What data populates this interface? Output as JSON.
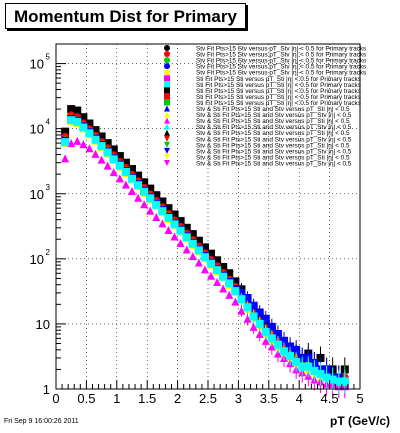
{
  "title": "Momentum Dist for Primary",
  "footer_text": "Fri Sep  9 16:00:26 2011",
  "chart_data": {
    "type": "scatter",
    "xlabel": "pT (GeV/c)",
    "ylabel": "",
    "xlim": [
      0,
      5
    ],
    "ylim": [
      1,
      200000
    ],
    "yscale": "log",
    "grid": true,
    "legend_placement": "top-right",
    "x_ticks": [
      "0",
      "0.5",
      "1",
      "1.5",
      "2",
      "2.5",
      "3",
      "3.5",
      "4",
      "4.5",
      "5"
    ],
    "y_ticks": [
      {
        "base": "1",
        "exp": ""
      },
      {
        "base": "10",
        "exp": ""
      },
      {
        "base": "10",
        "exp": "2"
      },
      {
        "base": "10",
        "exp": "3"
      },
      {
        "base": "10",
        "exp": "4"
      },
      {
        "base": "10",
        "exp": "5"
      }
    ],
    "x": [
      0.15,
      0.25,
      0.35,
      0.45,
      0.55,
      0.65,
      0.75,
      0.85,
      0.95,
      1.05,
      1.15,
      1.25,
      1.35,
      1.45,
      1.55,
      1.65,
      1.75,
      1.85,
      1.95,
      2.05,
      2.15,
      2.25,
      2.35,
      2.45,
      2.55,
      2.65,
      2.75,
      2.85,
      2.95,
      3.05,
      3.15,
      3.25,
      3.35,
      3.45,
      3.55,
      3.65,
      3.75,
      3.85,
      3.95,
      4.05,
      4.15,
      4.25,
      4.35,
      4.45,
      4.55,
      4.65,
      4.75
    ],
    "series": [
      {
        "color": "#000000",
        "marker": "square",
        "values": [
          9000,
          20000,
          19000,
          15000,
          12000,
          9500,
          7600,
          6000,
          4800,
          3800,
          3000,
          2400,
          1900,
          1500,
          1200,
          950,
          760,
          600,
          480,
          380,
          300,
          240,
          190,
          150,
          120,
          95,
          75,
          60,
          45,
          34,
          25,
          18,
          13,
          10,
          8,
          6,
          5,
          4,
          3.5,
          3,
          3.5,
          2.5,
          3,
          2,
          2,
          1.5,
          2
        ]
      },
      {
        "color": "#ff0000",
        "marker": "circle",
        "values": [
          7500,
          16000,
          15000,
          12000,
          9800,
          7800,
          6200,
          5000,
          3900,
          3100,
          2500,
          1950,
          1550,
          1230,
          980,
          780,
          620,
          490,
          390,
          310,
          245,
          195,
          155,
          122,
          97,
          77,
          61,
          48,
          37,
          28,
          21,
          15,
          11,
          8.5,
          7,
          5.5,
          4.5,
          4,
          3,
          2.5,
          3,
          2.5,
          2,
          2,
          1.5,
          1.5,
          1.5
        ]
      },
      {
        "color": "#00cc00",
        "marker": "triangle",
        "values": [
          7000,
          15000,
          14000,
          11500,
          9300,
          7400,
          5900,
          4700,
          3700,
          2950,
          2350,
          1850,
          1480,
          1170,
          930,
          740,
          590,
          465,
          370,
          295,
          233,
          185,
          147,
          116,
          92,
          73,
          58,
          46,
          35,
          26,
          19,
          14,
          10.5,
          8,
          6.5,
          5,
          4,
          3.5,
          3,
          2.5,
          2.5,
          2,
          2,
          1.5,
          1.5,
          1.2,
          1.5
        ]
      },
      {
        "color": "#0000ff",
        "marker": "square",
        "values": [
          6500,
          14000,
          13200,
          10800,
          8800,
          7000,
          5600,
          4450,
          3500,
          2800,
          2230,
          1760,
          1400,
          1110,
          880,
          700,
          560,
          440,
          350,
          280,
          221,
          175,
          139,
          110,
          87,
          69,
          55,
          44,
          34,
          30,
          25,
          19,
          15,
          12,
          9,
          7,
          5.5,
          4.5,
          4,
          3,
          3,
          2.5,
          2,
          2,
          1.5,
          1.5,
          1.2
        ]
      },
      {
        "color": "#ffff00",
        "marker": "triangle",
        "values": [
          6000,
          13000,
          12200,
          10000,
          8200,
          6500,
          5200,
          4150,
          3260,
          2600,
          2080,
          1640,
          1300,
          1030,
          820,
          650,
          520,
          410,
          326,
          260,
          206,
          163,
          130,
          102,
          81,
          64,
          51,
          40,
          31,
          23,
          17,
          12.5,
          9.5,
          7,
          5.5,
          4.5,
          3.5,
          3,
          2.5,
          2,
          2,
          1.8,
          1.5,
          1.5,
          1.2,
          1.2,
          1.2
        ]
      },
      {
        "color": "#ff00ff",
        "marker": "triangle",
        "values": [
          3500,
          6000,
          6500,
          5800,
          5000,
          4100,
          3350,
          2700,
          2150,
          1720,
          1380,
          1100,
          870,
          690,
          550,
          440,
          350,
          277,
          220,
          175,
          139,
          110,
          88,
          69,
          55,
          44,
          35,
          28,
          22,
          16,
          12,
          9,
          7,
          5.5,
          4.5,
          3.5,
          3,
          2.5,
          2,
          1.8,
          1.6,
          1.4,
          1.3,
          1.2,
          1.2,
          1.1,
          1.1
        ]
      },
      {
        "color": "#00ffff",
        "marker": "square",
        "values": [
          6200,
          13500,
          12700,
          10400,
          8500,
          6750,
          5400,
          4300,
          3380,
          2700,
          2160,
          1700,
          1350,
          1070,
          850,
          675,
          540,
          425,
          338,
          270,
          214,
          170,
          135,
          106,
          84,
          67,
          53,
          42,
          32,
          24,
          18,
          13,
          10,
          7.5,
          6,
          4.8,
          3.8,
          3.2,
          2.6,
          2.2,
          2.2,
          1.9,
          1.7,
          1.5,
          1.4,
          1.3,
          1.3
        ]
      }
    ],
    "legend_entries": [
      "Stv Fit Pts>15 Stv versus pT_Stv |η| < 0.5 for Primary tracks",
      "Stv Fit Pts>15 Stv versus pT_Stv |η| < 0.5 for Primary tracks",
      "Stv Fit Pts>15 Stv versus pT_Stv |η| < 0.5 for Primary tracks",
      "Stv Fit Pts>15 Stv versus pT_Stv |η| < 0.5 for Primary tracks",
      "Stv Fit Pts>15 Stv versus pT_Stv |η| < 0.5 for Primary tracks",
      "Sti Fit Pts>15 Sti versus pT_Sti |η| < 0.5 for Primary tracks",
      "Sti Fit Pts>15 Sti versus pT_Sti |η| < 0.5 for Primary tracks",
      "Sti Fit Pts>15 Sti versus pT_Sti |η| < 0.5 for Primary tracks",
      "Sti Fit Pts>15 Sti versus pT_Sti |η| < 0.5 for Primary tracks",
      "Sti Fit Pts>15 Sti versus pT_Sti |η| < 0.5 for Primary tracks",
      "Stv & Sti Fit Pts>15 Sti and Stv versus pT_Sti |η| < 0.5",
      "Stv & Sti Fit Pts>15 Sti and Stv versus pT_Stv |η| < 0.5",
      "Stv & Sti Fit Pts>15 Sti and Stv versus pT_Sti |η| < 0.5",
      "Stv & Sti Fit Pts>15 Sti and Stv versus pT_Stv |η| < 0.5",
      "Stv & Sti Fit Pts>15 Sti and Stv versus pT_Sti |η| < 0.5",
      "Stv & Sti Fit Pts>15 Sti and Stv versus pT_Stv |η| < 0.5",
      "Stv & Sti Fit Pts>15 Sti and Stv versus pT_Sti |η| < 0.5",
      "Stv & Sti Fit Pts>15 Sti and Stv versus pT_Stv |η| < 0.5",
      "Stv & Sti Fit Pts>15 Sti and Stv versus pT_Sti |η| < 0.5",
      "Stv & Sti Fit Pts>15 Sti and Stv versus pT_Stv |η| < 0.5"
    ],
    "legend_markers": [
      {
        "color": "#000000",
        "marker": "circle"
      },
      {
        "color": "#ff0000",
        "marker": "circle"
      },
      {
        "color": "#00cc00",
        "marker": "circle"
      },
      {
        "color": "#0000ff",
        "marker": "circle"
      },
      {
        "color": "#ffff00",
        "marker": "circle"
      },
      {
        "color": "#ff00ff",
        "marker": "square"
      },
      {
        "color": "#00ffff",
        "marker": "square"
      },
      {
        "color": "#000000",
        "marker": "square"
      },
      {
        "color": "#ff0000",
        "marker": "square"
      },
      {
        "color": "#00cc00",
        "marker": "square"
      },
      {
        "color": "#0000ff",
        "marker": "triangle"
      },
      {
        "color": "#ffff00",
        "marker": "triangle"
      },
      {
        "color": "#ff00ff",
        "marker": "triangle"
      },
      {
        "color": "#00ffff",
        "marker": "triangle"
      },
      {
        "color": "#000000",
        "marker": "triangle"
      },
      {
        "color": "#ff0000",
        "marker": "down"
      },
      {
        "color": "#00cc00",
        "marker": "down"
      },
      {
        "color": "#0000ff",
        "marker": "down"
      },
      {
        "color": "#ffff00",
        "marker": "down"
      },
      {
        "color": "#ff00ff",
        "marker": "down"
      }
    ]
  }
}
